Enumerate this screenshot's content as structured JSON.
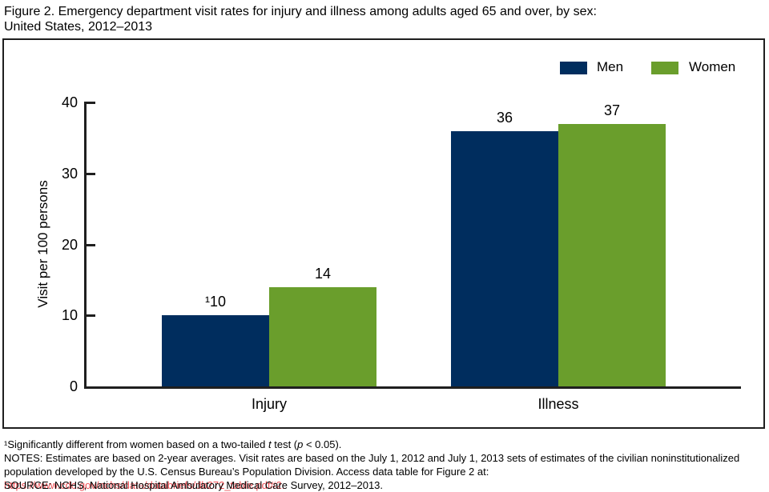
{
  "figure": {
    "title_line1": "Figure 2. Emergency department visit rates for injury and illness among adults aged 65 and over, by sex:",
    "title_line2": "United States, 2012–2013"
  },
  "chart_data": {
    "type": "bar",
    "title": "Figure 2. Emergency department visit rates for injury and illness among adults aged 65 and over, by sex: United States, 2012–2013",
    "categories": [
      "Injury",
      "Illness"
    ],
    "series": [
      {
        "name": "Men",
        "color": "#002d5e",
        "values": [
          10,
          36
        ],
        "value_labels": [
          "¹10",
          "36"
        ]
      },
      {
        "name": "Women",
        "color": "#6a9e2c",
        "values": [
          14,
          37
        ],
        "value_labels": [
          "14",
          "37"
        ]
      }
    ],
    "xlabel": "",
    "ylabel": "Visit per 100 persons",
    "ylim": [
      0,
      40
    ],
    "yticks": [
      0,
      10,
      20,
      30,
      40
    ],
    "grid": false,
    "legend_position": "top-right"
  },
  "footnotes": {
    "note1": {
      "s1": "¹Significantly different from women based on a two-tailed ",
      "t": "t",
      "s2": " test (",
      "p": "p",
      "s3": " < 0.05)."
    },
    "notes": {
      "prefix": "NOTES: Estimates are based on 2-year averages. Visit rates are based on the July 1, 2012 and July 1, 2013 sets of estimates of the civilian noninstitutionalized population developed by the U.S. Census Bureau’s Population Division. Access data table for Figure 2 at: ",
      "link": "https://www.cdc.gov/nchs/data/databriefs/db272_table.pdf#2.",
      "link_color": "#ec4f55"
    },
    "source": "SOURCE: NCHS, National Hospital Ambulatory Medical Care Survey, 2012–2013."
  }
}
